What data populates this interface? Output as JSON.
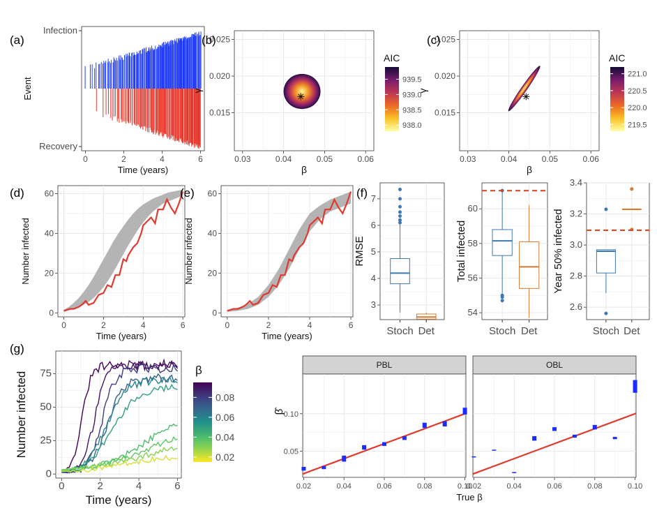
{
  "panel_labels": {
    "a": "(a)",
    "b": "(b)",
    "c": "(c)",
    "d": "(d)",
    "e": "(e)",
    "f": "(f)",
    "g": "(g)"
  },
  "colors": {
    "infection": "#1f3bff",
    "recovery": "#e8382c",
    "fit": "#e03a2e",
    "band": "#b4b4b4",
    "stoch": "#3c78b4",
    "det": "#d27a32",
    "obs": "#e0481e",
    "ribbon": "#1a2cff",
    "identity": "#e03a2e",
    "strip": "#d3d3d3",
    "panel_bg": "#ebebeb"
  },
  "chart_data": [
    {
      "id": "a",
      "type": "event raster",
      "ylabel": "Event",
      "xlabel": "Time (years)",
      "yticks": [
        "Infection",
        "Recovery"
      ],
      "xlim": [
        -0.2,
        6.2
      ],
      "xticks": [
        0,
        2,
        4,
        6
      ],
      "series": [
        {
          "name": "Infection",
          "x_range": [
            0,
            6
          ],
          "n_events": 174
        },
        {
          "name": "Recovery",
          "x_range": [
            0.6,
            6
          ],
          "n_events": 160
        }
      ]
    },
    {
      "id": "b",
      "type": "heatmap",
      "xlabel": "β",
      "ylabel": "γ",
      "xlim": [
        0.028,
        0.062
      ],
      "ylim": [
        0.0098,
        0.0262
      ],
      "xticks": [
        0.03,
        0.04,
        0.05,
        0.06
      ],
      "yticks": [
        0.015,
        0.02,
        0.025
      ],
      "legend_title": "AIC",
      "legend_ticks": [
        939.5,
        939.0,
        938.5,
        938.0
      ],
      "color_range": [
        937.8,
        939.9
      ],
      "region": {
        "shape": "disk",
        "center": [
          0.0445,
          0.0179
        ],
        "radius_beta": 0.0045,
        "radius_gamma": 0.0024
      },
      "best": [
        0.0442,
        0.0172
      ]
    },
    {
      "id": "c",
      "type": "heatmap",
      "xlabel": "β",
      "ylabel": "γ",
      "xlim": [
        0.028,
        0.062
      ],
      "ylim": [
        0.0098,
        0.0262
      ],
      "xticks": [
        0.03,
        0.04,
        0.05,
        0.06
      ],
      "yticks": [
        0.015,
        0.02,
        0.025
      ],
      "legend_title": "AIC",
      "legend_ticks": [
        221.0,
        220.5,
        220.0,
        219.5
      ],
      "color_range": [
        219.3,
        221.2
      ],
      "region": {
        "shape": "ridge",
        "from": [
          0.0399,
          0.0152
        ],
        "to": [
          0.0476,
          0.0214
        ],
        "center": [
          0.0438,
          0.0183
        ]
      },
      "best": [
        0.0442,
        0.0172
      ]
    },
    {
      "id": "d",
      "type": "line",
      "ylabel": "Number infected",
      "xlabel": "Time (years)",
      "xlim": [
        -0.3,
        6.1
      ],
      "ylim": [
        -2,
        64
      ],
      "xticks": [
        0,
        2,
        4,
        6
      ],
      "yticks": [
        0,
        20,
        40,
        60
      ],
      "x": [
        0,
        0.25,
        0.5,
        0.75,
        1,
        1.25,
        1.5,
        1.75,
        2,
        2.25,
        2.5,
        2.75,
        3,
        3.25,
        3.5,
        3.75,
        4,
        4.25,
        4.5,
        4.75,
        5,
        5.25,
        5.5,
        5.75,
        6
      ],
      "band_low": [
        0.5,
        1.2,
        2,
        3,
        4,
        5.5,
        7.5,
        10,
        13,
        16.5,
        20.5,
        25,
        29.5,
        34,
        38,
        42,
        45.5,
        48.5,
        51,
        53,
        55,
        56,
        57,
        58,
        59
      ],
      "band_high": [
        1.5,
        3,
        5,
        7.5,
        10.5,
        14,
        18,
        22.5,
        27,
        31.5,
        36,
        40,
        43.5,
        47,
        50,
        52.5,
        54.5,
        56,
        57.5,
        58.5,
        59.5,
        60.5,
        61,
        61.5,
        62
      ],
      "series": [
        {
          "x": [
            0,
            0.3,
            0.5,
            0.75,
            0.9,
            1.1,
            1.25,
            1.5,
            1.75,
            2,
            2.2,
            2.4,
            2.6,
            2.8,
            3,
            3.15,
            3.25,
            3.5,
            3.7,
            3.9,
            4,
            4.2,
            4.4,
            4.6,
            4.75,
            5,
            5.2,
            5.4,
            5.6,
            5.8,
            6
          ],
          "y": [
            1,
            2,
            2,
            3,
            4,
            6,
            4,
            5,
            9,
            10,
            14,
            13,
            19,
            19,
            27,
            26,
            29,
            33,
            35,
            40,
            44,
            46,
            48,
            45,
            52,
            52,
            57,
            53,
            50,
            55,
            61
          ]
        }
      ]
    },
    {
      "id": "e",
      "type": "line",
      "ylabel": "Number infected",
      "xlabel": "Time (years)",
      "xlim": [
        -0.3,
        6.1
      ],
      "ylim": [
        -2,
        64
      ],
      "xticks": [
        0,
        2,
        4,
        6
      ],
      "yticks": [
        0,
        20,
        40,
        60
      ],
      "x": [
        0,
        0.5,
        1,
        1.5,
        2,
        2.5,
        3,
        3.5,
        4,
        4.5,
        5,
        5.5,
        6
      ],
      "band_low": [
        0.5,
        1,
        2,
        4,
        8,
        14,
        22,
        32,
        41,
        47,
        51,
        53,
        55
      ],
      "band_high": [
        1.5,
        2.5,
        4.5,
        8,
        14,
        22,
        32,
        42,
        50,
        54,
        57,
        59,
        61
      ],
      "series": [
        {
          "x": [
            0,
            0.3,
            0.5,
            0.75,
            0.9,
            1.1,
            1.25,
            1.5,
            1.75,
            2,
            2.2,
            2.4,
            2.6,
            2.8,
            3,
            3.15,
            3.25,
            3.5,
            3.7,
            3.9,
            4,
            4.2,
            4.4,
            4.6,
            4.75,
            5,
            5.2,
            5.4,
            5.6,
            5.8,
            6
          ],
          "y": [
            1,
            2,
            2,
            3,
            4,
            6,
            4,
            5,
            9,
            10,
            14,
            13,
            19,
            19,
            27,
            26,
            29,
            33,
            35,
            40,
            44,
            46,
            48,
            45,
            52,
            52,
            57,
            53,
            50,
            55,
            61
          ]
        }
      ]
    },
    {
      "id": "f1",
      "type": "boxplot",
      "ylabel": "RMSE",
      "categories": [
        "Stoch",
        "Det"
      ],
      "ylim": [
        2.45,
        7.6
      ],
      "yticks": [
        3,
        4,
        5,
        6,
        7
      ],
      "boxes": [
        {
          "min": 2.72,
          "q1": 3.8,
          "median": 4.2,
          "q3": 4.75,
          "max": 6.05,
          "outliers": [
            6.1,
            6.2,
            6.35,
            6.5,
            6.7,
            7.0,
            7.35
          ]
        },
        {
          "min": 2.4,
          "q1": 2.47,
          "median": 2.55,
          "q3": 2.66,
          "max": 2.72,
          "outliers": []
        }
      ]
    },
    {
      "id": "f2",
      "type": "boxplot",
      "ylabel": "Total infected",
      "categories": [
        "Stoch",
        "Det"
      ],
      "ylim": [
        53.6,
        61.5
      ],
      "yticks": [
        54,
        56,
        58,
        60
      ],
      "ref_line": 61.05,
      "boxes": [
        {
          "min": 55.1,
          "q1": 57.3,
          "median": 58.15,
          "q3": 58.8,
          "max": 61,
          "outliers": [
            54.7,
            54.9,
            55,
            61.05
          ]
        },
        {
          "min": 53.7,
          "q1": 55.4,
          "median": 56.65,
          "q3": 58.1,
          "max": 60.2,
          "outliers": []
        }
      ]
    },
    {
      "id": "f3",
      "type": "boxplot",
      "ylabel": "Year 50% infected",
      "categories": [
        "Stoch",
        "Det"
      ],
      "ylim": [
        2.52,
        3.4
      ],
      "yticks": [
        2.6,
        2.8,
        3.0,
        3.2,
        3.4
      ],
      "ref_line": 3.095,
      "boxes": [
        {
          "min": 2.69,
          "q1": 2.82,
          "median": 2.96,
          "q3": 2.97,
          "max": 2.97,
          "outliers": [
            2.56,
            3.23
          ]
        },
        {
          "min": 3.23,
          "q1": 3.23,
          "median": 3.23,
          "q3": 3.23,
          "max": 3.23,
          "outliers": [
            3.1,
            3.36
          ]
        }
      ]
    },
    {
      "id": "g",
      "type": "line",
      "ylabel": "Number infected",
      "xlabel": "Time (years)",
      "xlim": [
        -0.3,
        6.2
      ],
      "ylim": [
        -3,
        92
      ],
      "xticks": [
        0,
        2,
        4,
        6
      ],
      "yticks": [
        0,
        25,
        50,
        75
      ],
      "legend_title": "β",
      "legend_ticks": [
        0.08,
        0.06,
        0.04,
        0.02
      ],
      "color_range": [
        0.015,
        0.095
      ],
      "series": [
        {
          "beta": 0.1,
          "start": 1,
          "plateau": 81,
          "r": 4.2,
          "mid": 1.05,
          "noise": 3.5
        },
        {
          "beta": 0.09,
          "start": 1,
          "plateau": 82,
          "r": 3.4,
          "mid": 1.7,
          "noise": 3.5
        },
        {
          "beta": 0.08,
          "start": 1,
          "plateau": 79,
          "r": 2.9,
          "mid": 2.1,
          "noise": 3.5
        },
        {
          "beta": 0.07,
          "start": 1,
          "plateau": 72,
          "r": 2.4,
          "mid": 2.35,
          "noise": 3.5
        },
        {
          "beta": 0.06,
          "start": 1,
          "plateau": 70,
          "r": 2.0,
          "mid": 2.3,
          "noise": 3
        },
        {
          "beta": 0.05,
          "start": 1,
          "plateau": 65,
          "r": 1.5,
          "mid": 2.6,
          "noise": 2.5
        },
        {
          "beta": 0.04,
          "start": 1,
          "plateau": 48,
          "r": 0.8,
          "mid": 4.4,
          "noise": 2.5
        },
        {
          "beta": 0.035,
          "start": 1,
          "plateau": 40,
          "r": 0.6,
          "mid": 4.8,
          "noise": 2
        },
        {
          "beta": 0.03,
          "start": 1,
          "plateau": 32,
          "r": 0.5,
          "mid": 5.0,
          "noise": 2
        },
        {
          "beta": 0.02,
          "start": 1,
          "plateau": 14,
          "r": 0.8,
          "mid": 3.2,
          "noise": 2
        }
      ]
    },
    {
      "id": "h",
      "type": "facet scatter",
      "xlabel": "True β",
      "ylabel": "β̂",
      "facets": [
        "PBL",
        "OBL"
      ],
      "xlim": [
        0.0195,
        0.1005
      ],
      "ylim": [
        0.015,
        0.153
      ],
      "xticks": [
        0.02,
        0.04,
        0.06,
        0.08,
        0.1
      ],
      "yticks": [
        0.05,
        0.1
      ],
      "identity_line": true,
      "PBL": {
        "x": [
          0.02,
          0.03,
          0.04,
          0.05,
          0.06,
          0.07,
          0.08,
          0.09,
          0.1
        ],
        "lo": [
          0.024,
          0.026,
          0.036,
          0.052,
          0.057,
          0.065,
          0.081,
          0.083,
          0.099
        ],
        "hi": [
          0.029,
          0.03,
          0.044,
          0.058,
          0.062,
          0.07,
          0.088,
          0.09,
          0.108
        ]
      },
      "OBL": {
        "x": [
          0.02,
          0.03,
          0.04,
          0.05,
          0.06,
          0.07,
          0.08,
          0.09,
          0.1
        ],
        "lo": [
          0.042,
          0.051,
          0.021,
          0.064,
          0.077,
          0.068,
          0.079,
          0.066,
          0.128
        ],
        "hi": [
          0.043,
          0.052,
          0.022,
          0.07,
          0.082,
          0.072,
          0.085,
          0.069,
          0.145
        ]
      }
    }
  ]
}
